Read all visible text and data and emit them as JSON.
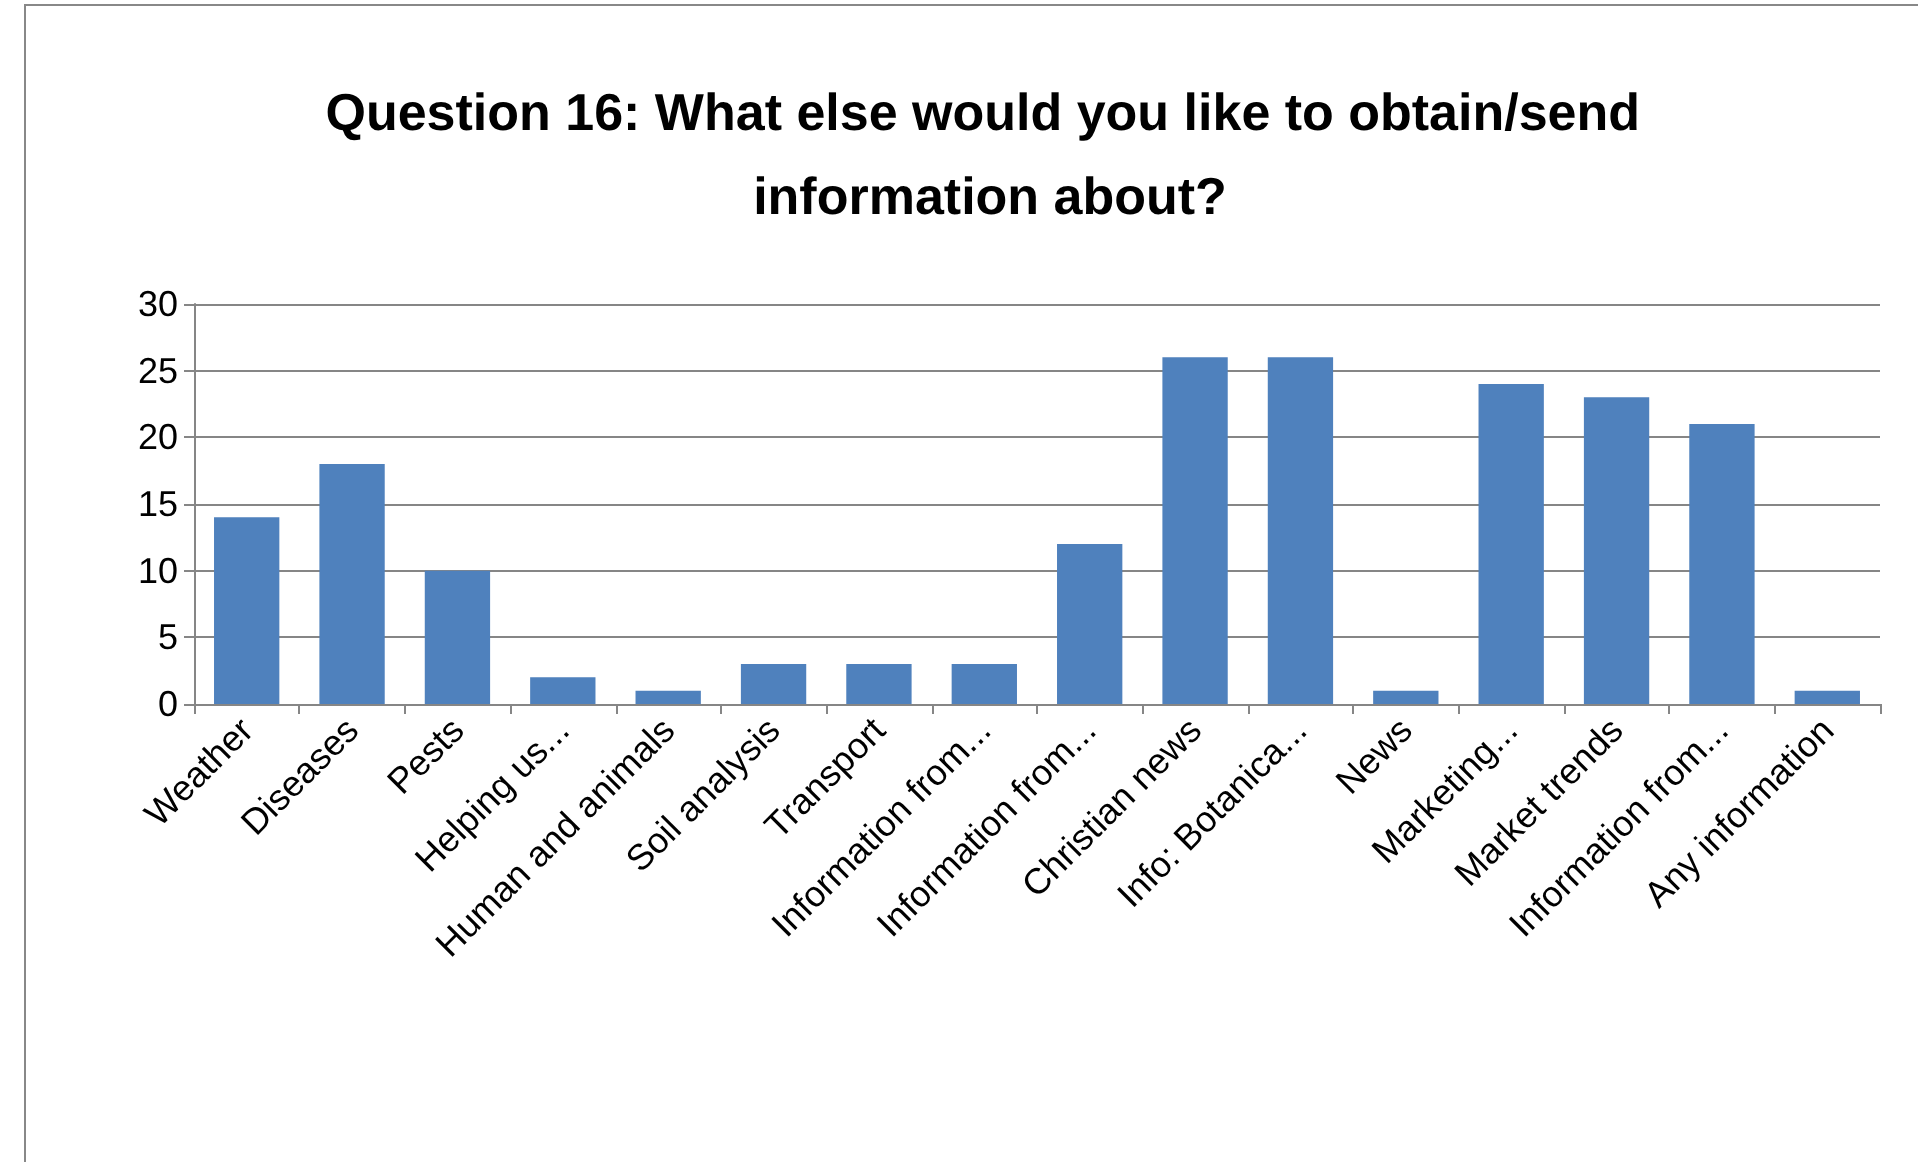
{
  "chart_data": {
    "type": "bar",
    "title": "Question 16: What else would you like to obtain/send information about?",
    "categories": [
      "Weather",
      "Diseases",
      "Pests",
      "Helping us...",
      "Human and animals",
      "Soil analysis",
      "Transport",
      "Information from...",
      "Information from...",
      "Christian news",
      "Info: Botanica...",
      "News",
      "Marketing...",
      "Market trends",
      "Information from...",
      "Any information"
    ],
    "values": [
      14,
      18,
      10,
      2,
      1,
      3,
      3,
      3,
      12,
      26,
      26,
      1,
      24,
      23,
      21,
      1
    ],
    "color": "#4f81bd",
    "ylim": [
      0,
      30
    ],
    "yticks": [
      0,
      5,
      10,
      15,
      20,
      25,
      30
    ],
    "grid": "y"
  }
}
